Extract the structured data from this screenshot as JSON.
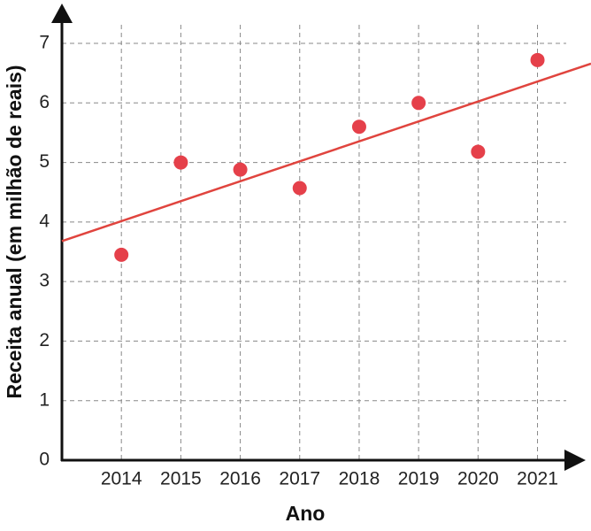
{
  "chart_data": {
    "type": "scatter",
    "x_label": "Ano",
    "y_label": "Receita anual (em milhão de reais)",
    "x": [
      2014,
      2015,
      2016,
      2017,
      2018,
      2019,
      2020,
      2021
    ],
    "series": [
      {
        "color": "#e5404a",
        "values": [
          3.45,
          5.0,
          4.88,
          4.57,
          5.6,
          6.0,
          5.18,
          6.72
        ]
      }
    ],
    "trendline": {
      "color": "#e0443e",
      "x": [
        2013,
        2021.9
      ],
      "y": [
        3.68,
        6.66
      ]
    },
    "xlim": [
      2013,
      2021.9
    ],
    "ylim": [
      0,
      7
    ],
    "xticks": [
      2014,
      2015,
      2016,
      2017,
      2018,
      2019,
      2020,
      2021
    ],
    "yticks": [
      0,
      1,
      2,
      3,
      4,
      5,
      6,
      7
    ],
    "grid": true
  }
}
